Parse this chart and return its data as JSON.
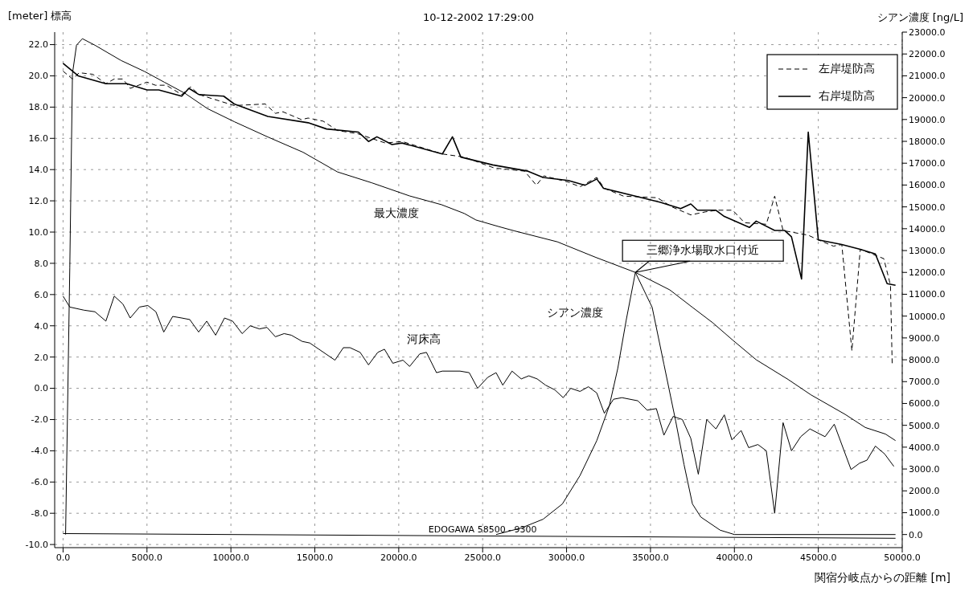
{
  "chart_data": {
    "type": "line",
    "title": "10-12-2002 17:29:00",
    "xlabel": "関宿分岐点からの距離  [m]",
    "ylabel": "[meter] 標高",
    "y2label": "シアン濃度  [ng/L]",
    "xlim": [
      -500,
      50000
    ],
    "xticks": [
      {
        "value": 0,
        "label": "0.0"
      },
      {
        "value": 5000,
        "label": "5000.0"
      },
      {
        "value": 10000,
        "label": "10000.0"
      },
      {
        "value": 15000,
        "label": "15000.0"
      },
      {
        "value": 20000,
        "label": "20000.0"
      },
      {
        "value": 25000,
        "label": "25000.0"
      },
      {
        "value": 30000,
        "label": "30000.0"
      },
      {
        "value": 35000,
        "label": "35000.0"
      },
      {
        "value": 40000,
        "label": "40000.0"
      },
      {
        "value": 45000,
        "label": "45000.0"
      },
      {
        "value": 50000,
        "label": "50000.0"
      }
    ],
    "ylim": [
      -10.2,
      22.8
    ],
    "yticks": [
      {
        "value": -10,
        "label": "-10.0"
      },
      {
        "value": -8,
        "label": "-8.0"
      },
      {
        "value": -6,
        "label": "-6.0"
      },
      {
        "value": -4,
        "label": "-4.0"
      },
      {
        "value": -2,
        "label": "-2.0"
      },
      {
        "value": 0,
        "label": "0.0"
      },
      {
        "value": 2,
        "label": "2.0"
      },
      {
        "value": 4,
        "label": "4.0"
      },
      {
        "value": 6,
        "label": "6.0"
      },
      {
        "value": 8,
        "label": "8.0"
      },
      {
        "value": 10,
        "label": "10.0"
      },
      {
        "value": 12,
        "label": "12.0"
      },
      {
        "value": 14,
        "label": "14.0"
      },
      {
        "value": 16,
        "label": "16.0"
      },
      {
        "value": 18,
        "label": "18.0"
      },
      {
        "value": 20,
        "label": "20.0"
      },
      {
        "value": 22,
        "label": "22.0"
      }
    ],
    "y2lim": [
      -600,
      23000
    ],
    "y2ticks": [
      {
        "value": 0,
        "label": "0.0"
      },
      {
        "value": 1000,
        "label": "1000.0"
      },
      {
        "value": 2000,
        "label": "2000.0"
      },
      {
        "value": 3000,
        "label": "3000.0"
      },
      {
        "value": 4000,
        "label": "4000.0"
      },
      {
        "value": 5000,
        "label": "5000.0"
      },
      {
        "value": 6000,
        "label": "6000.0"
      },
      {
        "value": 7000,
        "label": "7000.0"
      },
      {
        "value": 8000,
        "label": "8000.0"
      },
      {
        "value": 9000,
        "label": "9000.0"
      },
      {
        "value": 10000,
        "label": "10000.0"
      },
      {
        "value": 11000,
        "label": "11000.0"
      },
      {
        "value": 12000,
        "label": "12000.0"
      },
      {
        "value": 13000,
        "label": "13000.0"
      },
      {
        "value": 14000,
        "label": "14000.0"
      },
      {
        "value": 15000,
        "label": "15000.0"
      },
      {
        "value": 16000,
        "label": "16000.0"
      },
      {
        "value": 17000,
        "label": "17000.0"
      },
      {
        "value": 18000,
        "label": "18000.0"
      },
      {
        "value": 19000,
        "label": "19000.0"
      },
      {
        "value": 20000,
        "label": "20000.0"
      },
      {
        "value": 21000,
        "label": "21000.0"
      },
      {
        "value": 22000,
        "label": "22000.0"
      },
      {
        "value": 23000,
        "label": "23000.0"
      }
    ],
    "grid": true,
    "legend": "top right",
    "marker": "none",
    "annotations": [
      "三郷浄水場取水口付近",
      {
        "text": "EDOGAWA  58500 - 9300",
        "x": 25000,
        "y": -9.45
      }
    ],
    "series": [
      {
        "name": "左岸堤防高",
        "color": "#000000",
        "line_style": "dashed",
        "x": [
          0,
          560,
          960,
          1780,
          2550,
          3050,
          3560,
          4000,
          5000,
          5500,
          6150,
          7070,
          7600,
          8100,
          10200,
          12050,
          12650,
          13100,
          14200,
          14600,
          15500,
          16350,
          17550,
          19200,
          20200,
          22600,
          23900,
          25700,
          27500,
          28200,
          28650,
          30100,
          30800,
          31800,
          32250,
          33400,
          35400,
          36300,
          37400,
          38300,
          39000,
          39900,
          40600,
          41900,
          42400,
          42900,
          44400,
          45000,
          45900,
          46400,
          47000,
          47500,
          48900,
          49300,
          49400
        ],
        "values": [
          20.3,
          19.8,
          20.2,
          20.1,
          19.5,
          19.8,
          19.8,
          19.2,
          19.6,
          19.4,
          19.4,
          18.8,
          19.3,
          18.8,
          18.1,
          18.2,
          17.6,
          17.7,
          17.2,
          17.3,
          17.1,
          16.5,
          16.3,
          15.7,
          15.8,
          15.0,
          14.8,
          14.1,
          13.9,
          13.0,
          13.6,
          13.2,
          12.9,
          13.5,
          12.8,
          12.3,
          12.2,
          11.6,
          11.1,
          11.3,
          11.4,
          11.4,
          10.6,
          10.5,
          12.3,
          10.1,
          9.8,
          9.5,
          9.1,
          9.2,
          2.4,
          8.9,
          8.3,
          6.6,
          1.6
        ]
      },
      {
        "name": "右岸堤防高",
        "color": "#000000",
        "line_style": "solid",
        "x": [
          0,
          900,
          2550,
          3800,
          5000,
          5700,
          7070,
          7500,
          8100,
          9570,
          10200,
          12200,
          14600,
          15700,
          17600,
          18200,
          18700,
          19600,
          20200,
          22600,
          23200,
          23700,
          25600,
          27700,
          28600,
          30100,
          31100,
          31800,
          32200,
          34100,
          35600,
          36800,
          37400,
          37800,
          38900,
          39400,
          40900,
          41300,
          42400,
          43000,
          43400,
          44000,
          44400,
          45000,
          46400,
          47500,
          48400,
          49100,
          49600
        ],
        "values": [
          20.8,
          20.0,
          19.5,
          19.5,
          19.1,
          19.1,
          18.7,
          19.2,
          18.8,
          18.7,
          18.2,
          17.4,
          17.0,
          16.6,
          16.4,
          15.8,
          16.1,
          15.6,
          15.7,
          15.0,
          16.1,
          14.8,
          14.3,
          13.9,
          13.5,
          13.3,
          13.0,
          13.4,
          12.8,
          12.3,
          11.9,
          11.5,
          11.8,
          11.4,
          11.4,
          11.0,
          10.3,
          10.7,
          10.1,
          10.1,
          9.7,
          7.0,
          16.4,
          9.5,
          9.2,
          8.9,
          8.6,
          6.7,
          6.6
        ]
      },
      {
        "name": "河床高",
        "color": "#000000",
        "x": [
          0,
          400,
          1250,
          1900,
          2550,
          3050,
          3560,
          4000,
          4550,
          5050,
          5530,
          6000,
          6530,
          7070,
          7550,
          8080,
          8560,
          9090,
          9620,
          10100,
          10670,
          11150,
          11700,
          12150,
          12650,
          13170,
          13600,
          14250,
          14700,
          16200,
          16700,
          17100,
          17700,
          18200,
          18750,
          19150,
          19650,
          20250,
          20650,
          21250,
          21650,
          22250,
          22600,
          23650,
          24200,
          24700,
          25300,
          25800,
          26200,
          26750,
          27300,
          27750,
          28250,
          28750,
          29300,
          29800,
          30250,
          30800,
          31300,
          31800,
          32250,
          32800,
          33300,
          34250,
          34800,
          35350,
          35800,
          36350,
          36900,
          37400,
          37850,
          38350,
          38900,
          39400,
          39850,
          40400,
          40850,
          41400,
          41900,
          42400,
          42900,
          43400,
          43950,
          44500,
          45400,
          45950,
          46950,
          47450,
          47900,
          48400,
          48950,
          49500
        ],
        "values": [
          5.9,
          5.2,
          5.0,
          4.9,
          4.3,
          5.9,
          5.4,
          4.5,
          5.2,
          5.3,
          4.9,
          3.6,
          4.6,
          4.5,
          4.4,
          3.6,
          4.3,
          3.4,
          4.5,
          4.3,
          3.5,
          4.0,
          3.8,
          3.9,
          3.3,
          3.5,
          3.4,
          3.0,
          2.9,
          1.8,
          2.6,
          2.6,
          2.3,
          1.5,
          2.3,
          2.5,
          1.6,
          1.8,
          1.4,
          2.2,
          2.3,
          1.0,
          1.1,
          1.1,
          1.0,
          0.0,
          0.7,
          1.0,
          0.2,
          1.1,
          0.6,
          0.8,
          0.6,
          0.2,
          -0.1,
          -0.6,
          0.0,
          -0.2,
          0.1,
          -0.3,
          -1.6,
          -0.7,
          -0.6,
          -0.8,
          -1.4,
          -1.3,
          -3.0,
          -1.8,
          -2.0,
          -3.2,
          -5.5,
          -2.0,
          -2.6,
          -1.7,
          -3.3,
          -2.7,
          -3.8,
          -3.6,
          -4.0,
          -8.0,
          -2.2,
          -4.0,
          -3.1,
          -2.6,
          -3.1,
          -2.3,
          -5.2,
          -4.8,
          -4.6,
          -3.7,
          -4.2,
          -5.0
        ]
      },
      {
        "name": "最大濃度",
        "color": "#000000",
        "axis": "y2",
        "x": [
          150,
          400,
          560,
          800,
          1150,
          1900,
          3460,
          4850,
          6050,
          7260,
          8600,
          10200,
          12200,
          14300,
          16350,
          18400,
          20650,
          22550,
          23900,
          24600,
          25950,
          26900,
          29450,
          31700,
          34100,
          36150,
          37500,
          38700,
          39900,
          41300,
          43200,
          44550,
          46600,
          47800,
          49000,
          49600
        ],
        "values": [
          0,
          12200,
          21100,
          22400,
          22700,
          22400,
          21700,
          21200,
          20700,
          20200,
          19500,
          18900,
          18200,
          17500,
          16600,
          16100,
          15500,
          15100,
          14700,
          14400,
          14100,
          13900,
          13400,
          12700,
          12000,
          11200,
          10400,
          9700,
          8900,
          8000,
          7100,
          6400,
          5500,
          4900,
          4600,
          4300
        ]
      },
      {
        "name": "シアン濃度",
        "color": "#000000",
        "axis": "y2",
        "x": [
          25800,
          27300,
          28600,
          29750,
          30800,
          31800,
          32550,
          33050,
          33550,
          34100,
          35100,
          35800,
          36500,
          37000,
          37500,
          38000,
          39150,
          40000,
          49600
        ],
        "values": [
          0,
          300,
          700,
          1400,
          2700,
          4300,
          5900,
          7600,
          9800,
          12000,
          10400,
          7800,
          5200,
          3200,
          1400,
          800,
          200,
          0,
          0
        ]
      },
      {
        "color": "#000000",
        "x": [
          0,
          49600
        ],
        "values": [
          -9.3,
          -9.6
        ]
      }
    ]
  }
}
